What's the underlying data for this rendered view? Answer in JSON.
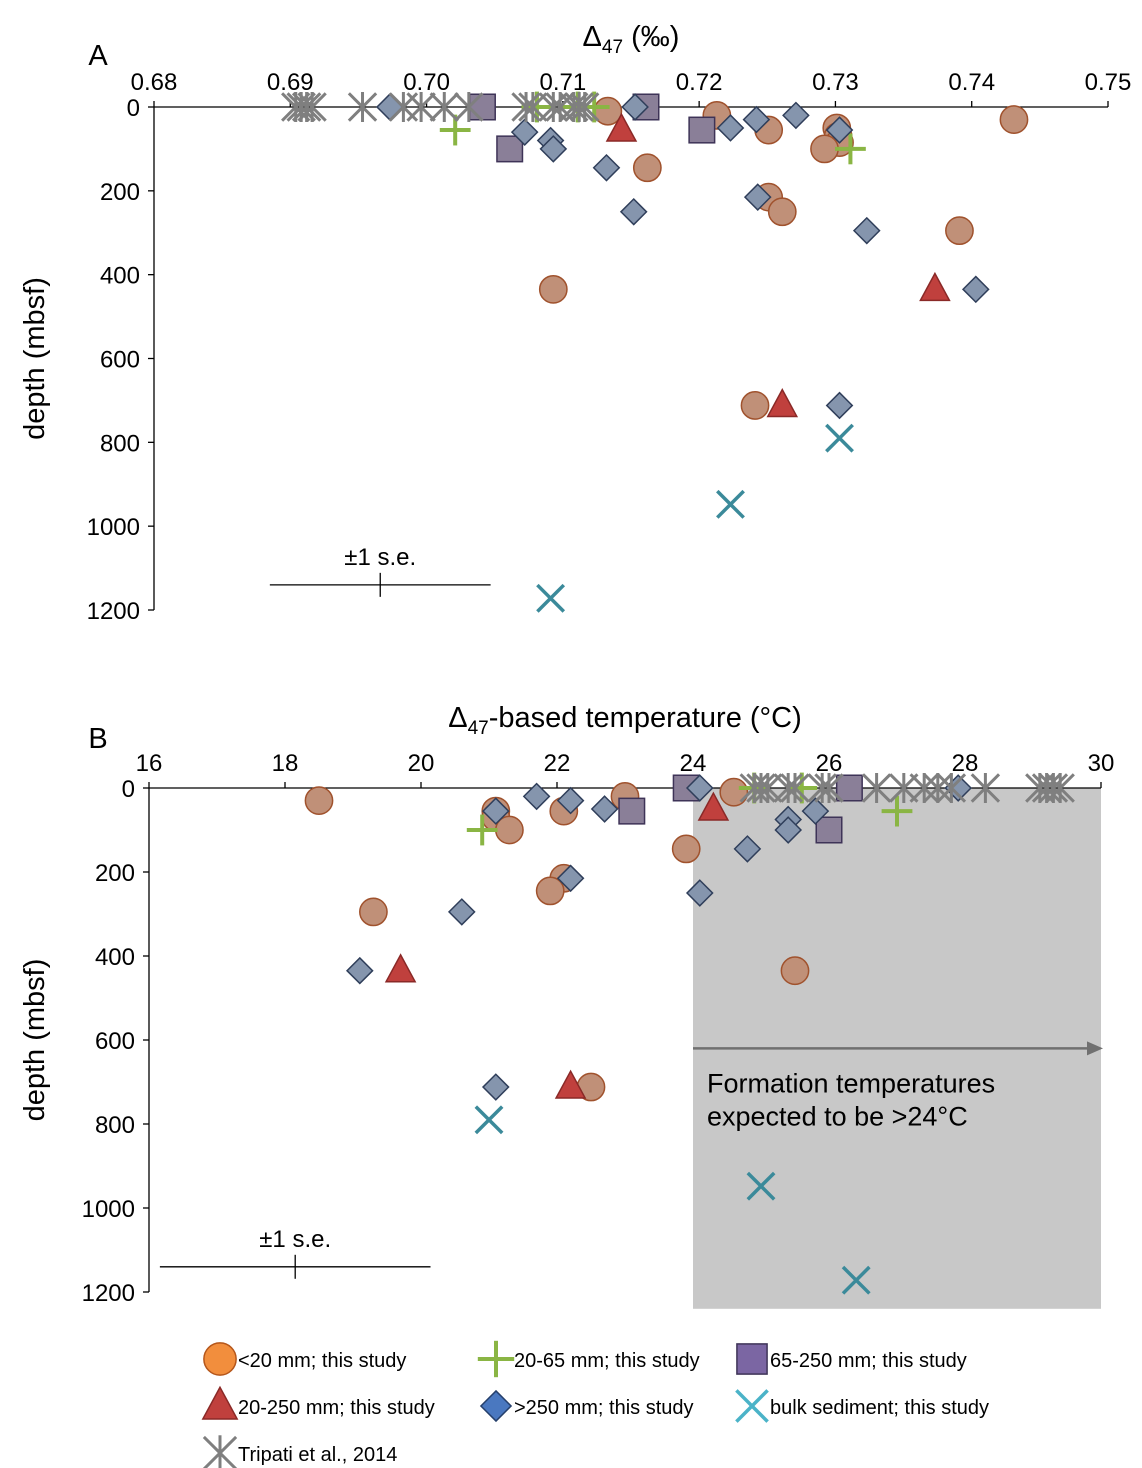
{
  "chart_data": [
    {
      "panel_label": "A",
      "type": "scatter",
      "xlabel_symbol": "Δ",
      "xlabel_sub": "47",
      "xlabel_rest": " (‰)",
      "ylabel": "depth (mbsf)",
      "xlim": [
        0.68,
        0.75
      ],
      "ylim": [
        0,
        1200
      ],
      "y_reversed": true,
      "x_axis_position": "top",
      "x_ticks": [
        0.68,
        0.69,
        0.7,
        0.71,
        0.72,
        0.73,
        0.74,
        0.75
      ],
      "x_tick_labels": [
        "0.68",
        "0.69",
        "0.70",
        "0.71",
        "0.72",
        "0.73",
        "0.74",
        "0.75"
      ],
      "y_ticks": [
        0,
        200,
        400,
        600,
        800,
        1000,
        1200
      ],
      "y_tick_labels": [
        "0",
        "200",
        "400",
        "600",
        "800",
        "1000",
        "1200"
      ],
      "error_bar": {
        "label": "±1 s.e.",
        "center": 0.6966,
        "half_width": 0.0081,
        "depth": 1140
      },
      "series": [
        {
          "key": "lt20",
          "points": [
            [
              0.7431,
              30
            ],
            [
              0.7133,
              10
            ],
            [
              0.7213,
              20
            ],
            [
              0.7301,
              50
            ],
            [
              0.7302,
              70
            ],
            [
              0.7303,
              85
            ],
            [
              0.7292,
              100
            ],
            [
              0.7251,
              55
            ],
            [
              0.7162,
              145
            ],
            [
              0.7251,
              215
            ],
            [
              0.7261,
              250
            ],
            [
              0.7391,
              295
            ],
            [
              0.7093,
              435
            ],
            [
              0.7241,
              712
            ]
          ]
        },
        {
          "key": "p20_65",
          "points": [
            [
              0.7021,
              55
            ],
            [
              0.7311,
              100
            ],
            [
              0.7081,
              0
            ],
            [
              0.7111,
              0
            ],
            [
              0.7123,
              0
            ]
          ]
        },
        {
          "key": "p65_250",
          "points": [
            [
              0.7041,
              0
            ],
            [
              0.7161,
              0
            ],
            [
              0.7202,
              55
            ],
            [
              0.7061,
              100
            ]
          ]
        },
        {
          "key": "p20_250",
          "points": [
            [
              0.7143,
              55
            ],
            [
              0.7373,
              435
            ],
            [
              0.7261,
              712
            ]
          ]
        },
        {
          "key": "gt250",
          "points": [
            [
              0.6973,
              0
            ],
            [
              0.7153,
              0
            ],
            [
              0.7242,
              30
            ],
            [
              0.7271,
              20
            ],
            [
              0.7223,
              50
            ],
            [
              0.7072,
              60
            ],
            [
              0.7091,
              80
            ],
            [
              0.7093,
              100
            ],
            [
              0.7132,
              145
            ],
            [
              0.7303,
              55
            ],
            [
              0.7152,
              250
            ],
            [
              0.7243,
              215
            ],
            [
              0.7323,
              295
            ],
            [
              0.7403,
              435
            ],
            [
              0.7303,
              712
            ]
          ]
        },
        {
          "key": "bulk",
          "points": [
            [
              0.7303,
              790
            ],
            [
              0.7223,
              948
            ],
            [
              0.7091,
              1172
            ]
          ]
        },
        {
          "key": "tripati",
          "points": [
            [
              0.6904,
              0
            ],
            [
              0.6908,
              0
            ],
            [
              0.6912,
              0
            ],
            [
              0.6916,
              0
            ],
            [
              0.6953,
              0
            ],
            [
              0.6983,
              0
            ],
            [
              0.6996,
              0
            ],
            [
              0.7013,
              0
            ],
            [
              0.7031,
              0
            ],
            [
              0.7073,
              0
            ],
            [
              0.7078,
              0
            ],
            [
              0.7093,
              0
            ],
            [
              0.7098,
              0
            ],
            [
              0.7108,
              0
            ],
            [
              0.7112,
              0
            ],
            [
              0.7116,
              0
            ]
          ]
        }
      ]
    },
    {
      "panel_label": "B",
      "type": "scatter",
      "xlabel_symbol": "Δ",
      "xlabel_sub": "47",
      "xlabel_rest": "-based temperature (°C)",
      "ylabel": "depth (mbsf)",
      "xlim": [
        16,
        30
      ],
      "ylim": [
        0,
        1200
      ],
      "y_reversed": true,
      "x_axis_position": "top",
      "x_ticks": [
        16,
        18,
        20,
        22,
        24,
        26,
        28,
        30
      ],
      "x_tick_labels": [
        "16",
        "18",
        "20",
        "22",
        "24",
        "26",
        "28",
        "30"
      ],
      "y_ticks": [
        0,
        200,
        400,
        600,
        800,
        1000,
        1200
      ],
      "y_tick_labels": [
        "0",
        "200",
        "400",
        "600",
        "800",
        "1000",
        "1200"
      ],
      "error_bar": {
        "label": "±1 s.e.",
        "center": 18.15,
        "half_width": 1.99,
        "depth": 1140
      },
      "shaded_region": {
        "x_from": 24,
        "x_to": 30,
        "y_from": 0,
        "y_to": 1240
      },
      "annotation": {
        "lines": [
          "Formation temperatures",
          "expected to be >24°C"
        ],
        "arrow_from_x": 24,
        "arrow_to_x": 30,
        "arrow_depth": 620
      },
      "series": [
        {
          "key": "lt20",
          "points": [
            [
              18.5,
              30
            ],
            [
              19.3,
              295
            ],
            [
              21.1,
              55
            ],
            [
              21.1,
              70
            ],
            [
              21.3,
              100
            ],
            [
              22.1,
              55
            ],
            [
              22.1,
              215
            ],
            [
              21.9,
              245
            ],
            [
              23.0,
              20
            ],
            [
              23.9,
              145
            ],
            [
              24.6,
              10
            ],
            [
              25.5,
              435
            ],
            [
              22.5,
              712
            ]
          ]
        },
        {
          "key": "p20_65",
          "points": [
            [
              20.9,
              100
            ],
            [
              27.0,
              55
            ],
            [
              24.9,
              0
            ],
            [
              25.6,
              0
            ]
          ]
        },
        {
          "key": "p65_250",
          "points": [
            [
              23.9,
              0
            ],
            [
              26.3,
              0
            ],
            [
              23.1,
              55
            ],
            [
              26.0,
              100
            ]
          ]
        },
        {
          "key": "p20_250",
          "points": [
            [
              24.3,
              50
            ],
            [
              19.7,
              435
            ],
            [
              22.2,
              712
            ]
          ]
        },
        {
          "key": "gt250",
          "points": [
            [
              24.1,
              0
            ],
            [
              27.9,
              0
            ],
            [
              21.7,
              20
            ],
            [
              22.2,
              30
            ],
            [
              22.7,
              50
            ],
            [
              25.4,
              75
            ],
            [
              25.8,
              55
            ],
            [
              25.4,
              100
            ],
            [
              24.8,
              145
            ],
            [
              21.1,
              55
            ],
            [
              24.1,
              250
            ],
            [
              22.2,
              215
            ],
            [
              20.6,
              295
            ],
            [
              19.1,
              435
            ],
            [
              21.1,
              712
            ]
          ]
        },
        {
          "key": "bulk",
          "points": [
            [
              21.0,
              790
            ],
            [
              25.0,
              948
            ],
            [
              26.4,
              1172
            ]
          ]
        },
        {
          "key": "tripati",
          "points": [
            [
              24.9,
              0
            ],
            [
              25.0,
              0
            ],
            [
              25.1,
              0
            ],
            [
              25.4,
              0
            ],
            [
              25.5,
              0
            ],
            [
              25.9,
              0
            ],
            [
              26.0,
              0
            ],
            [
              26.7,
              0
            ],
            [
              27.1,
              0
            ],
            [
              27.4,
              0
            ],
            [
              27.6,
              0
            ],
            [
              27.8,
              0
            ],
            [
              28.3,
              0
            ],
            [
              29.1,
              0
            ],
            [
              29.2,
              0
            ],
            [
              29.3,
              0
            ],
            [
              29.4,
              0
            ]
          ]
        }
      ]
    }
  ],
  "legend": {
    "position": "bottom",
    "items": [
      {
        "key": "lt20",
        "label": "<20 mm; this study",
        "shape": "circle",
        "fill": "#f28e3d",
        "stroke": "#b5561a"
      },
      {
        "key": "p20_65",
        "label": "20-65 mm; this study",
        "shape": "plus",
        "fill": "#8ab544",
        "stroke": "#8ab544"
      },
      {
        "key": "p65_250",
        "label": "65-250 mm; this study",
        "shape": "square",
        "fill": "#7b66a3",
        "stroke": "#3e3357"
      },
      {
        "key": "p20_250",
        "label": "20-250 mm; this study",
        "shape": "triangle",
        "fill": "#c0403d",
        "stroke": "#8a2927"
      },
      {
        "key": "gt250",
        "label": ">250 mm; this study",
        "shape": "diamond",
        "fill": "#4a78c0",
        "stroke": "#253f6b"
      },
      {
        "key": "bulk",
        "label": "bulk sediment; this study",
        "shape": "x",
        "fill": "#4bb3c8",
        "stroke": "#4bb3c8"
      },
      {
        "key": "tripati",
        "label": "Tripati et al., 2014",
        "shape": "asterisk",
        "fill": "#7f7f7f",
        "stroke": "#7f7f7f"
      }
    ]
  },
  "plot_marker_colors": {
    "lt20": {
      "fill": "#c09078",
      "stroke": "#a0522d"
    },
    "p20_65": {
      "fill": "#8ab544",
      "stroke": "#8ab544"
    },
    "p65_250": {
      "fill": "#8a7f98",
      "stroke": "#3e3357"
    },
    "p20_250": {
      "fill": "#c0403d",
      "stroke": "#8a2927"
    },
    "gt250": {
      "fill": "#8595ad",
      "stroke": "#2f3e5a"
    },
    "bulk": {
      "fill": "#3b8a9a",
      "stroke": "#3b8a9a"
    },
    "tripati": {
      "fill": "#7f7f7f",
      "stroke": "#7f7f7f"
    }
  },
  "shade_color": "#c8c8c8",
  "arrow_color": "#707070"
}
